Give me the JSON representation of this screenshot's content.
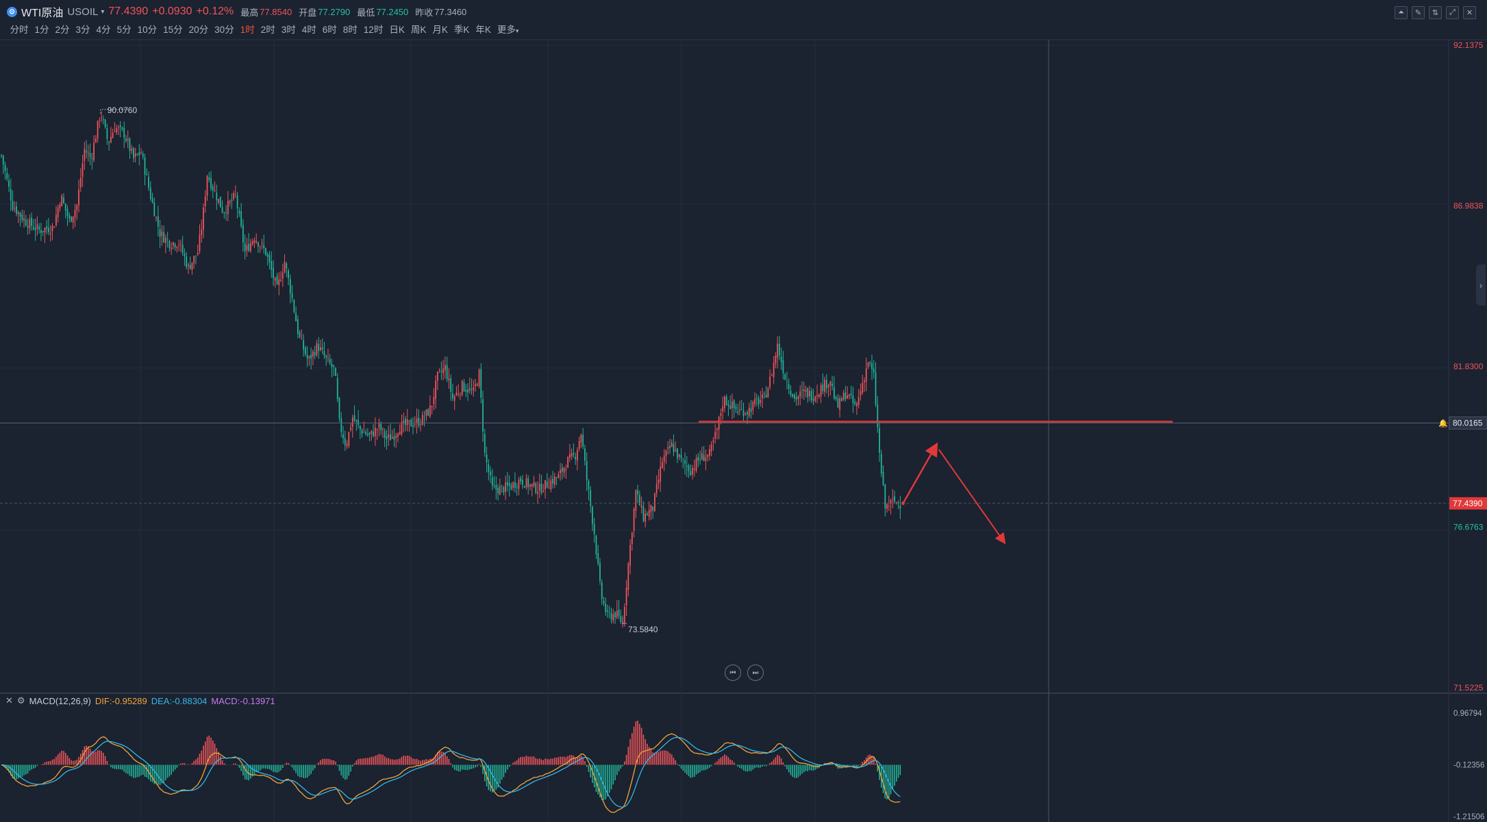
{
  "symbol": {
    "icon": "coin-icon",
    "icon_glyph": "⊙",
    "name": "WTI原油",
    "code": "USOIL",
    "dropdown_glyph": "▾",
    "price": "77.4390",
    "change": "+0.0930",
    "change_pct": "+0.12%"
  },
  "stats": {
    "high_label": "最高",
    "high": "77.8540",
    "open_label": "开盘",
    "open": "77.2790",
    "low_label": "最低",
    "low": "77.2450",
    "prev_close_label": "昨收",
    "prev_close": "77.3460"
  },
  "periods": [
    "分时",
    "1分",
    "2分",
    "3分",
    "4分",
    "5分",
    "10分",
    "15分",
    "20分",
    "30分",
    "1时",
    "2时",
    "3时",
    "4时",
    "6时",
    "8时",
    "12时",
    "日K",
    "周K",
    "月K",
    "季K",
    "年K",
    "更多"
  ],
  "active_period": "1时",
  "more_caret": "▾",
  "toolbar_icons": [
    "line-chart-icon",
    "draw-pen-icon",
    "indicator-icon",
    "fullscreen-icon",
    "close-icon"
  ],
  "toolbar_glyphs": [
    "⏶",
    "✎",
    "⇅",
    "⤢",
    "✕"
  ],
  "price_axis": {
    "labels": [
      "92.1375",
      "86.9838",
      "81.8300",
      "71.5225"
    ],
    "crosshair_value": "80.0165",
    "last_price_label": "77.4390",
    "low_marker_label": "76.6763"
  },
  "chart_annotations": {
    "high_label": "90.0760",
    "low_label": "73.5840"
  },
  "nav_buttons": {
    "prev": "⏮",
    "next": "⏭"
  },
  "side_tab_glyph": "›",
  "macd": {
    "close_glyph": "✕",
    "settings_glyph": "⚙",
    "name": "MACD(12,26,9)",
    "dif_label": "DIF:-0.95289",
    "dea_label": "DEA:-0.88304",
    "macd_label": "MACD:-0.13971",
    "axis_labels": [
      "0.96794",
      "-0.12356",
      "-1.21506"
    ]
  },
  "colors": {
    "up": "#f0555a",
    "down": "#22b59a",
    "dif": "#f2a53b",
    "dea": "#35b8e6",
    "macd": "#c57cf0",
    "background": "#1b2230",
    "resistance_line": "#e0393a"
  },
  "chart_data": {
    "type": "candlestick",
    "instrument": "WTI原油 USOIL",
    "period": "1时",
    "ylim": [
      71.5225,
      92.1375
    ],
    "y_ticks": [
      92.1375,
      86.9838,
      81.83,
      71.5225
    ],
    "last_price": 77.439,
    "resistance_level": 80.0165,
    "visible_high": 90.076,
    "visible_low": 73.584,
    "close_path": [
      [
        0,
        88.6
      ],
      [
        12,
        87.0
      ],
      [
        25,
        86.5
      ],
      [
        40,
        86.2
      ],
      [
        55,
        86.3
      ],
      [
        63,
        87.3
      ],
      [
        72,
        86.5
      ],
      [
        80,
        87.0
      ],
      [
        88,
        88.8
      ],
      [
        95,
        88.5
      ],
      [
        105,
        90.0
      ],
      [
        113,
        89.0
      ],
      [
        120,
        89.5
      ],
      [
        130,
        89.3
      ],
      [
        140,
        88.5
      ],
      [
        148,
        88.7
      ],
      [
        158,
        87.3
      ],
      [
        168,
        86.1
      ],
      [
        178,
        85.8
      ],
      [
        188,
        85.8
      ],
      [
        198,
        85.0
      ],
      [
        208,
        85.5
      ],
      [
        213,
        86.5
      ],
      [
        218,
        88.0
      ],
      [
        225,
        87.5
      ],
      [
        235,
        86.8
      ],
      [
        248,
        87.3
      ],
      [
        258,
        85.5
      ],
      [
        268,
        86.0
      ],
      [
        280,
        85.5
      ],
      [
        292,
        84.3
      ],
      [
        300,
        85.2
      ],
      [
        308,
        84.0
      ],
      [
        315,
        82.8
      ],
      [
        325,
        82.0
      ],
      [
        335,
        82.5
      ],
      [
        345,
        82.0
      ],
      [
        353,
        81.7
      ],
      [
        358,
        80.0
      ],
      [
        365,
        79.3
      ],
      [
        372,
        80.2
      ],
      [
        380,
        79.8
      ],
      [
        390,
        79.6
      ],
      [
        400,
        79.9
      ],
      [
        408,
        79.5
      ],
      [
        415,
        79.6
      ],
      [
        422,
        79.9
      ],
      [
        435,
        80.0
      ],
      [
        445,
        80.1
      ],
      [
        455,
        80.5
      ],
      [
        462,
        81.5
      ],
      [
        470,
        81.8
      ],
      [
        478,
        80.8
      ],
      [
        488,
        81.2
      ],
      [
        500,
        81.0
      ],
      [
        506,
        81.6
      ],
      [
        512,
        79.0
      ],
      [
        520,
        77.9
      ],
      [
        530,
        77.9
      ],
      [
        540,
        78.0
      ],
      [
        550,
        78.2
      ],
      [
        560,
        78.0
      ],
      [
        570,
        77.9
      ],
      [
        580,
        78.1
      ],
      [
        590,
        78.3
      ],
      [
        600,
        78.8
      ],
      [
        608,
        79.0
      ],
      [
        614,
        79.7
      ],
      [
        620,
        78.2
      ],
      [
        628,
        76.5
      ],
      [
        635,
        74.5
      ],
      [
        642,
        73.8
      ],
      [
        650,
        73.9
      ],
      [
        658,
        73.6
      ],
      [
        664,
        75.5
      ],
      [
        672,
        77.8
      ],
      [
        680,
        77.0
      ],
      [
        690,
        77.3
      ],
      [
        700,
        78.8
      ],
      [
        710,
        79.3
      ],
      [
        720,
        78.8
      ],
      [
        730,
        78.5
      ],
      [
        740,
        78.9
      ],
      [
        750,
        79.0
      ],
      [
        758,
        79.8
      ],
      [
        765,
        80.8
      ],
      [
        772,
        80.6
      ],
      [
        780,
        80.4
      ],
      [
        790,
        80.4
      ],
      [
        800,
        80.7
      ],
      [
        808,
        80.8
      ],
      [
        815,
        81.5
      ],
      [
        822,
        82.5
      ],
      [
        830,
        81.5
      ],
      [
        840,
        80.8
      ],
      [
        850,
        81.0
      ],
      [
        860,
        80.9
      ],
      [
        870,
        81.2
      ],
      [
        878,
        81.4
      ],
      [
        885,
        80.5
      ],
      [
        895,
        81.0
      ],
      [
        905,
        80.5
      ],
      [
        912,
        81.3
      ],
      [
        918,
        82.0
      ],
      [
        924,
        81.5
      ],
      [
        930,
        79.0
      ],
      [
        936,
        77.3
      ],
      [
        944,
        77.5
      ],
      [
        952,
        77.44
      ]
    ],
    "projection": [
      [
        955,
        77.44
      ],
      [
        990,
        79.3
      ],
      [
        1062,
        76.2
      ]
    ],
    "macd": {
      "dif": -0.95289,
      "dea": -0.88304,
      "macd": -0.13971,
      "ylim": [
        -1.21506,
        0.96794
      ],
      "zero_tick": -0.12356
    }
  }
}
